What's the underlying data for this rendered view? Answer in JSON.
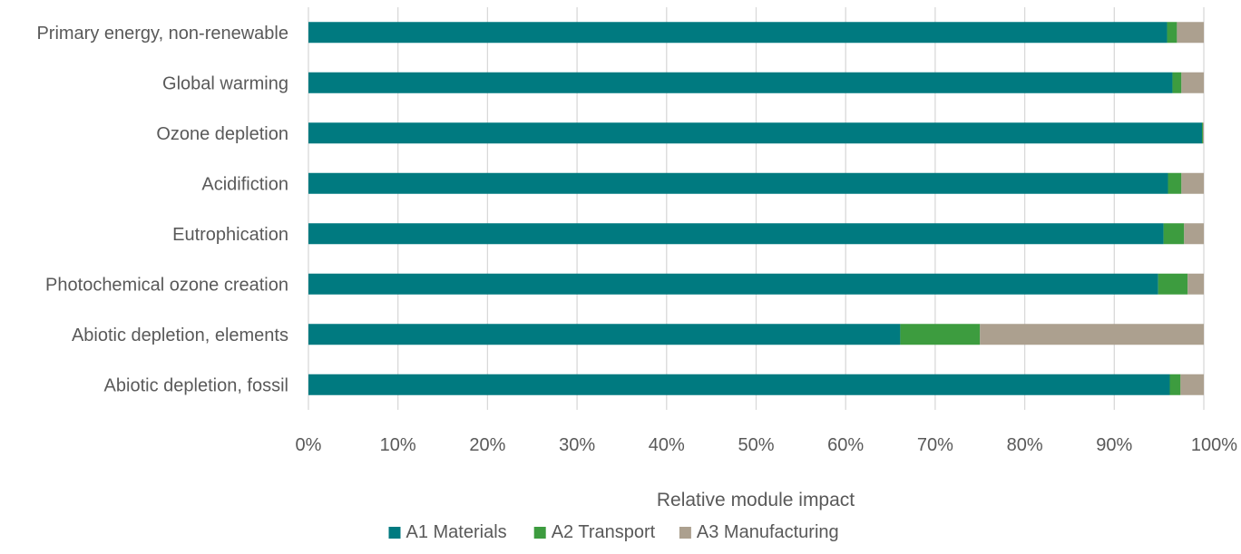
{
  "chart_data": {
    "type": "bar",
    "orientation": "horizontal",
    "stacked": true,
    "normalized_100_percent": true,
    "categories": [
      "Primary energy, non-renewable",
      "Global warming",
      "Ozone depletion",
      "Acidifiction",
      "Eutrophication",
      "Photochemical ozone creation",
      "Abiotic depletion, elements",
      "Abiotic depletion, fossil"
    ],
    "series": [
      {
        "name": "A1 Materials",
        "color": "#007A80",
        "values": [
          95.9,
          96.5,
          99.8,
          96.0,
          95.5,
          94.9,
          66.1,
          96.2
        ]
      },
      {
        "name": "A2 Transport",
        "color": "#3D9C3F",
        "values": [
          1.1,
          1.0,
          0.1,
          1.5,
          2.3,
          3.3,
          8.9,
          1.2
        ]
      },
      {
        "name": "A3 Manufacturing",
        "color": "#ACA08F",
        "values": [
          3.0,
          2.5,
          0.1,
          2.5,
          2.2,
          1.8,
          25.0,
          2.6
        ]
      }
    ],
    "xlabel": "Relative module impact",
    "ylabel": "",
    "title": "",
    "xlim": [
      0,
      100
    ],
    "xticks": [
      "0%",
      "10%",
      "20%",
      "30%",
      "40%",
      "50%",
      "60%",
      "70%",
      "80%",
      "90%",
      "100%"
    ],
    "grid": "vertical",
    "legend_position": "bottom"
  }
}
